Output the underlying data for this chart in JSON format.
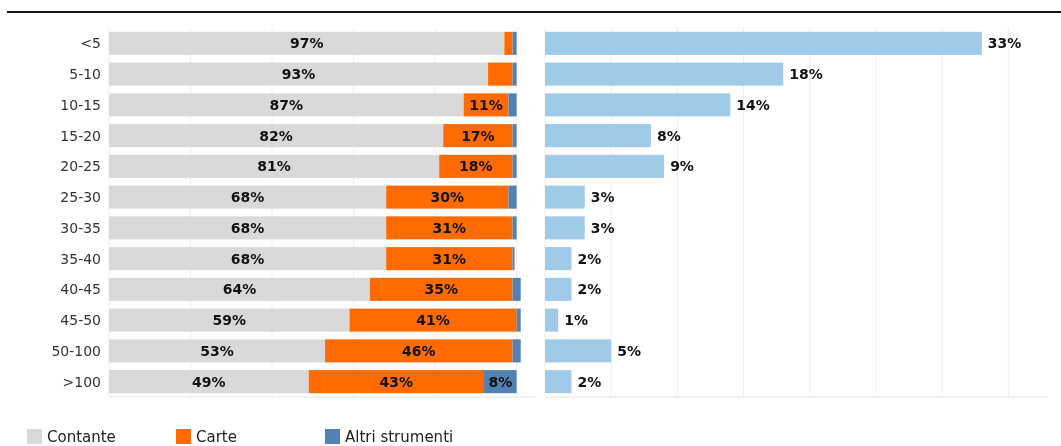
{
  "chart_data": [
    {
      "type": "bar",
      "orientation": "horizontal",
      "stacked": true,
      "categories": [
        "<5",
        "5-10",
        "10-15",
        "15-20",
        "20-25",
        "25-30",
        "30-35",
        "35-40",
        "40-45",
        "45-50",
        "50-100",
        ">100"
      ],
      "series": [
        {
          "name": "Contante",
          "color": "#d9d9d9",
          "values": [
            97,
            93,
            87,
            82,
            81,
            68,
            68,
            68,
            64,
            59,
            53,
            49
          ],
          "value_labels": [
            "97%",
            "93%",
            "87%",
            "82%",
            "81%",
            "68%",
            "68%",
            "68%",
            "64%",
            "59%",
            "53%",
            "49%"
          ]
        },
        {
          "name": "Carte",
          "color": "#ff6b00",
          "values": [
            2,
            6,
            11,
            17,
            18,
            30,
            31,
            31,
            35,
            41,
            46,
            43
          ],
          "value_labels": [
            null,
            null,
            "11%",
            "17%",
            "18%",
            "30%",
            "31%",
            "31%",
            "35%",
            "41%",
            "46%",
            "43%"
          ]
        },
        {
          "name": "Altri strumenti",
          "color": "#5282b4",
          "values": [
            1,
            1,
            2,
            1,
            1,
            2,
            1,
            0.5,
            2,
            1,
            2,
            8
          ],
          "value_labels": [
            null,
            null,
            null,
            null,
            null,
            null,
            null,
            null,
            null,
            null,
            null,
            "8%"
          ]
        }
      ],
      "xlim": [
        0,
        105
      ],
      "xticks": [
        {
          "value": 0,
          "label": null
        },
        {
          "value": 20,
          "label": null
        },
        {
          "value": 40,
          "label": null
        },
        {
          "value": 60,
          "label": null
        },
        {
          "value": 80,
          "label": null
        },
        {
          "value": 100,
          "label": null
        }
      ],
      "grid": "x",
      "legend": "bottom",
      "tick_labels": "y"
    },
    {
      "type": "bar",
      "orientation": "horizontal",
      "categories": [
        null,
        null,
        null,
        null,
        null,
        null,
        null,
        null,
        null,
        null,
        null,
        null
      ],
      "values": [
        33,
        18,
        14,
        8,
        9,
        3,
        3,
        2,
        2,
        1,
        5,
        2
      ],
      "color": "#a0cbe8",
      "value_labels": [
        "33%",
        "18%",
        "14%",
        "8%",
        "9%",
        "3%",
        "3%",
        "2%",
        "2%",
        "1%",
        "5%",
        "2%"
      ],
      "xlim": [
        0,
        38
      ],
      "xticks": [
        {
          "value": 0,
          "label": null
        },
        {
          "value": 5,
          "label": null
        },
        {
          "value": 10,
          "label": null
        },
        {
          "value": 15,
          "label": null
        },
        {
          "value": 20,
          "label": null
        },
        {
          "value": 25,
          "label": null
        },
        {
          "value": 30,
          "label": null
        },
        {
          "value": 35,
          "label": null
        }
      ],
      "grid": "x",
      "tick_labels": false
    }
  ]
}
